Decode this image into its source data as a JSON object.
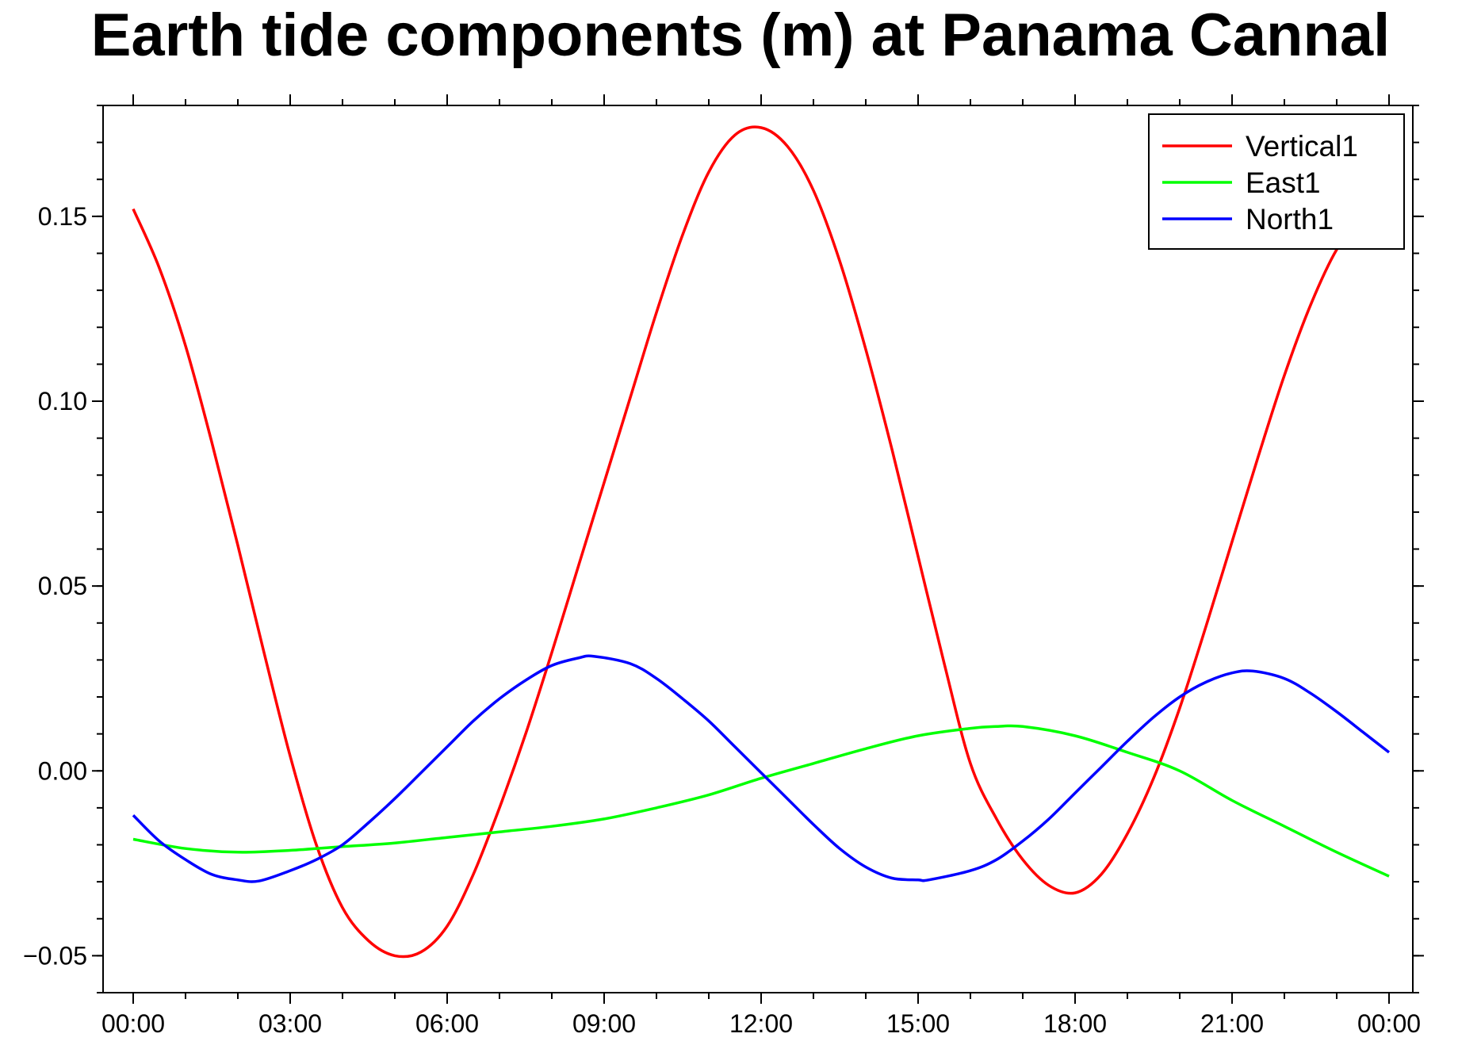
{
  "chart_data": {
    "type": "line",
    "title": "Earth tide components (m) at Panama Cannal",
    "xlabel": "",
    "ylabel": "",
    "xlim": [
      0,
      24
    ],
    "ylim": [
      -0.06,
      0.18
    ],
    "grid": false,
    "legend_position": "top-right",
    "x_ticks": [
      {
        "value": 0,
        "label": "00:00"
      },
      {
        "value": 3,
        "label": "03:00"
      },
      {
        "value": 6,
        "label": "06:00"
      },
      {
        "value": 9,
        "label": "09:00"
      },
      {
        "value": 12,
        "label": "12:00"
      },
      {
        "value": 15,
        "label": "15:00"
      },
      {
        "value": 18,
        "label": "18:00"
      },
      {
        "value": 21,
        "label": "21:00"
      },
      {
        "value": 24,
        "label": "00:00"
      }
    ],
    "y_ticks": [
      {
        "value": -0.05,
        "label": "−0.05"
      },
      {
        "value": 0.0,
        "label": "0.00"
      },
      {
        "value": 0.05,
        "label": "0.05"
      },
      {
        "value": 0.1,
        "label": "0.10"
      },
      {
        "value": 0.15,
        "label": "0.15"
      }
    ],
    "x_minor_step": 1,
    "y_minor_step": 0.01,
    "series": [
      {
        "name": "Vertical1",
        "color": "#ff0000",
        "x": [
          0,
          0.5,
          1,
          1.5,
          2,
          2.5,
          3,
          3.5,
          4,
          4.5,
          5,
          5.5,
          6,
          6.5,
          7,
          7.5,
          8,
          8.5,
          9,
          9.5,
          10,
          10.5,
          11,
          11.5,
          12,
          12.5,
          13,
          13.5,
          14,
          14.5,
          15,
          15.5,
          16,
          16.5,
          17,
          17.5,
          18,
          18.5,
          19,
          19.5,
          20,
          20.5,
          21,
          21.5,
          22,
          22.5,
          23,
          23.5,
          24
        ],
        "y": [
          0.152,
          0.136,
          0.115,
          0.089,
          0.061,
          0.032,
          0.004,
          -0.02,
          -0.037,
          -0.046,
          -0.05,
          -0.049,
          -0.042,
          -0.028,
          -0.01,
          0.01,
          0.032,
          0.055,
          0.078,
          0.101,
          0.124,
          0.145,
          0.162,
          0.172,
          0.174,
          0.169,
          0.157,
          0.138,
          0.114,
          0.087,
          0.058,
          0.029,
          0.002,
          -0.013,
          -0.024,
          -0.031,
          -0.033,
          -0.028,
          -0.017,
          -0.002,
          0.017,
          0.039,
          0.062,
          0.085,
          0.107,
          0.126,
          0.141,
          0.15,
          0.155
        ]
      },
      {
        "name": "East1",
        "color": "#00ff00",
        "x": [
          0,
          1,
          2,
          3,
          4,
          5,
          6,
          7,
          8,
          9,
          10,
          11,
          12,
          13,
          14,
          15,
          16,
          16.5,
          17,
          18,
          19,
          20,
          21,
          22,
          23,
          24
        ],
        "y": [
          -0.0185,
          -0.021,
          -0.022,
          -0.0215,
          -0.0205,
          -0.0195,
          -0.018,
          -0.0165,
          -0.015,
          -0.013,
          -0.01,
          -0.0065,
          -0.002,
          0.002,
          0.006,
          0.0095,
          0.0115,
          0.012,
          0.012,
          0.0095,
          0.005,
          0.0,
          -0.008,
          -0.015,
          -0.022,
          -0.0285
        ]
      },
      {
        "name": "North1",
        "color": "#0000ff",
        "x": [
          0,
          0.5,
          1,
          1.5,
          2,
          2.4,
          3,
          3.5,
          4,
          4.5,
          5,
          5.5,
          6,
          6.5,
          7,
          7.5,
          8,
          8.5,
          8.8,
          9.5,
          10,
          10.5,
          11,
          11.5,
          12,
          12.5,
          13,
          13.5,
          14,
          14.5,
          15,
          15.2,
          16,
          16.5,
          17,
          17.5,
          18,
          18.5,
          19,
          19.5,
          20,
          20.5,
          21,
          21.4,
          22,
          22.5,
          23,
          23.5,
          24
        ],
        "y": [
          -0.012,
          -0.019,
          -0.024,
          -0.028,
          -0.0295,
          -0.0298,
          -0.027,
          -0.024,
          -0.02,
          -0.014,
          -0.0075,
          -0.0005,
          0.0065,
          0.0135,
          0.0195,
          0.0245,
          0.0285,
          0.0305,
          0.031,
          0.029,
          0.025,
          0.0195,
          0.0135,
          0.0065,
          -0.0005,
          -0.0075,
          -0.0145,
          -0.021,
          -0.026,
          -0.029,
          -0.0295,
          -0.0295,
          -0.027,
          -0.024,
          -0.019,
          -0.013,
          -0.006,
          0.001,
          0.008,
          0.0145,
          0.02,
          0.024,
          0.0265,
          0.027,
          0.025,
          0.021,
          0.016,
          0.0105,
          0.005
        ]
      }
    ]
  }
}
